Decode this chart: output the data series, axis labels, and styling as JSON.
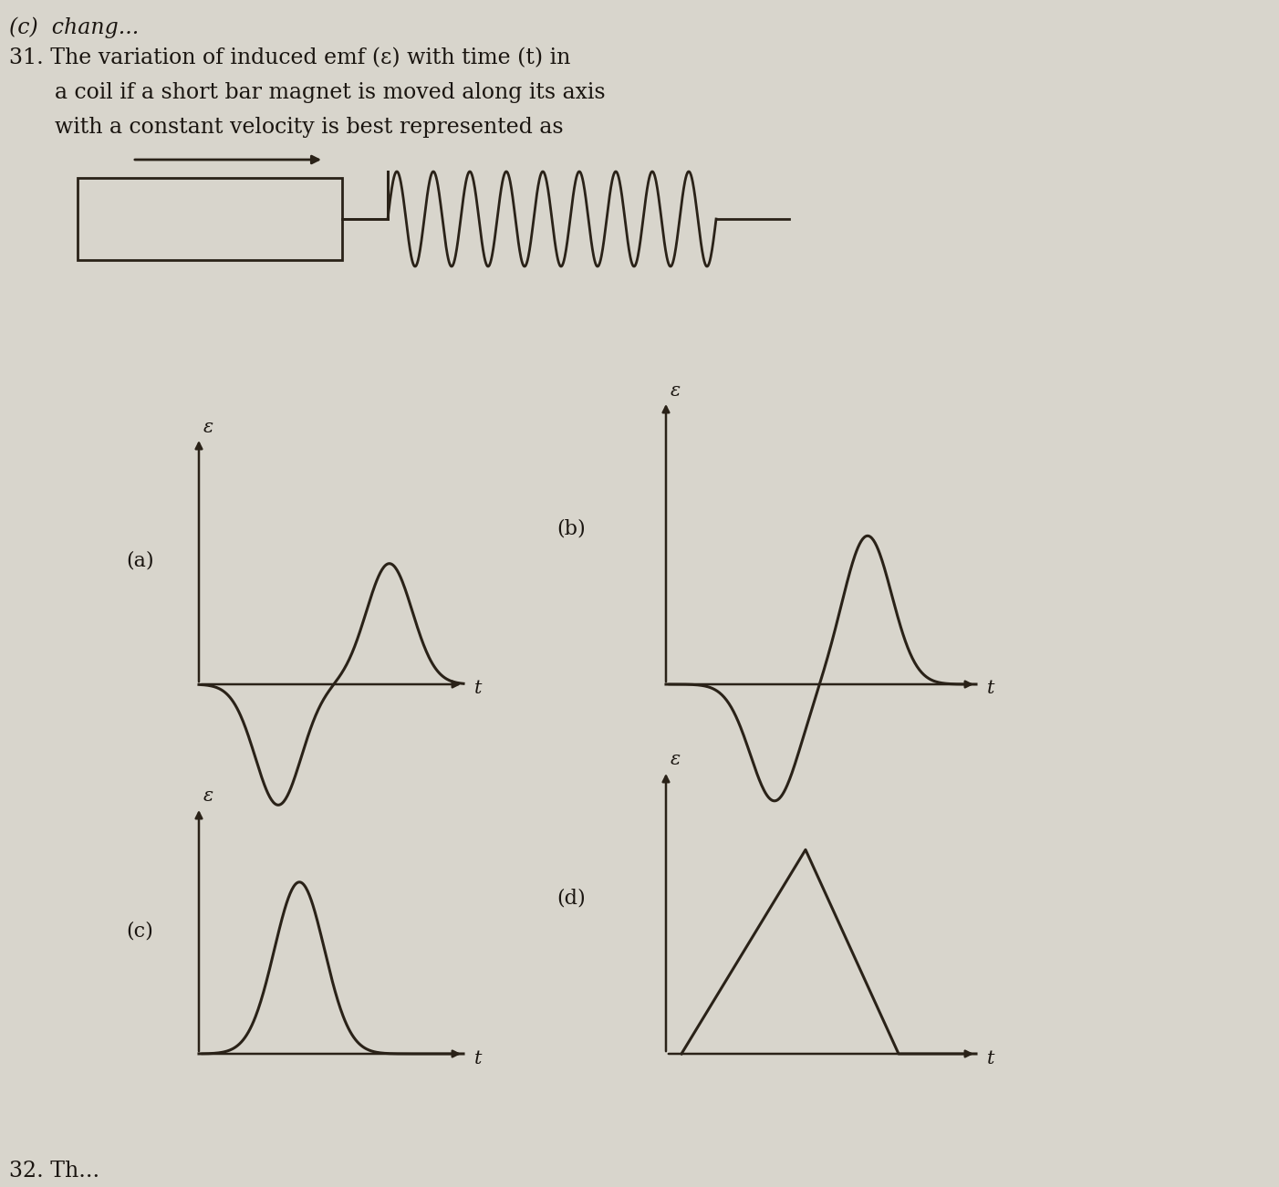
{
  "bg_color": "#d8d5cc",
  "line_color": "#2a2218",
  "text_color": "#1a1510",
  "title_line1": "31. The variation of induced emf (ε) with time (t) in",
  "title_line2": "a coil if a short bar magnet is moved along its axis",
  "title_line3": "with a constant velocity is best represented as",
  "label_a": "(a)",
  "label_b": "(b)",
  "label_c": "(c)",
  "label_d": "(d)",
  "epsilon": "ε",
  "t_label": "t",
  "font_size_title": 17,
  "font_size_label": 16,
  "font_size_axis": 15
}
